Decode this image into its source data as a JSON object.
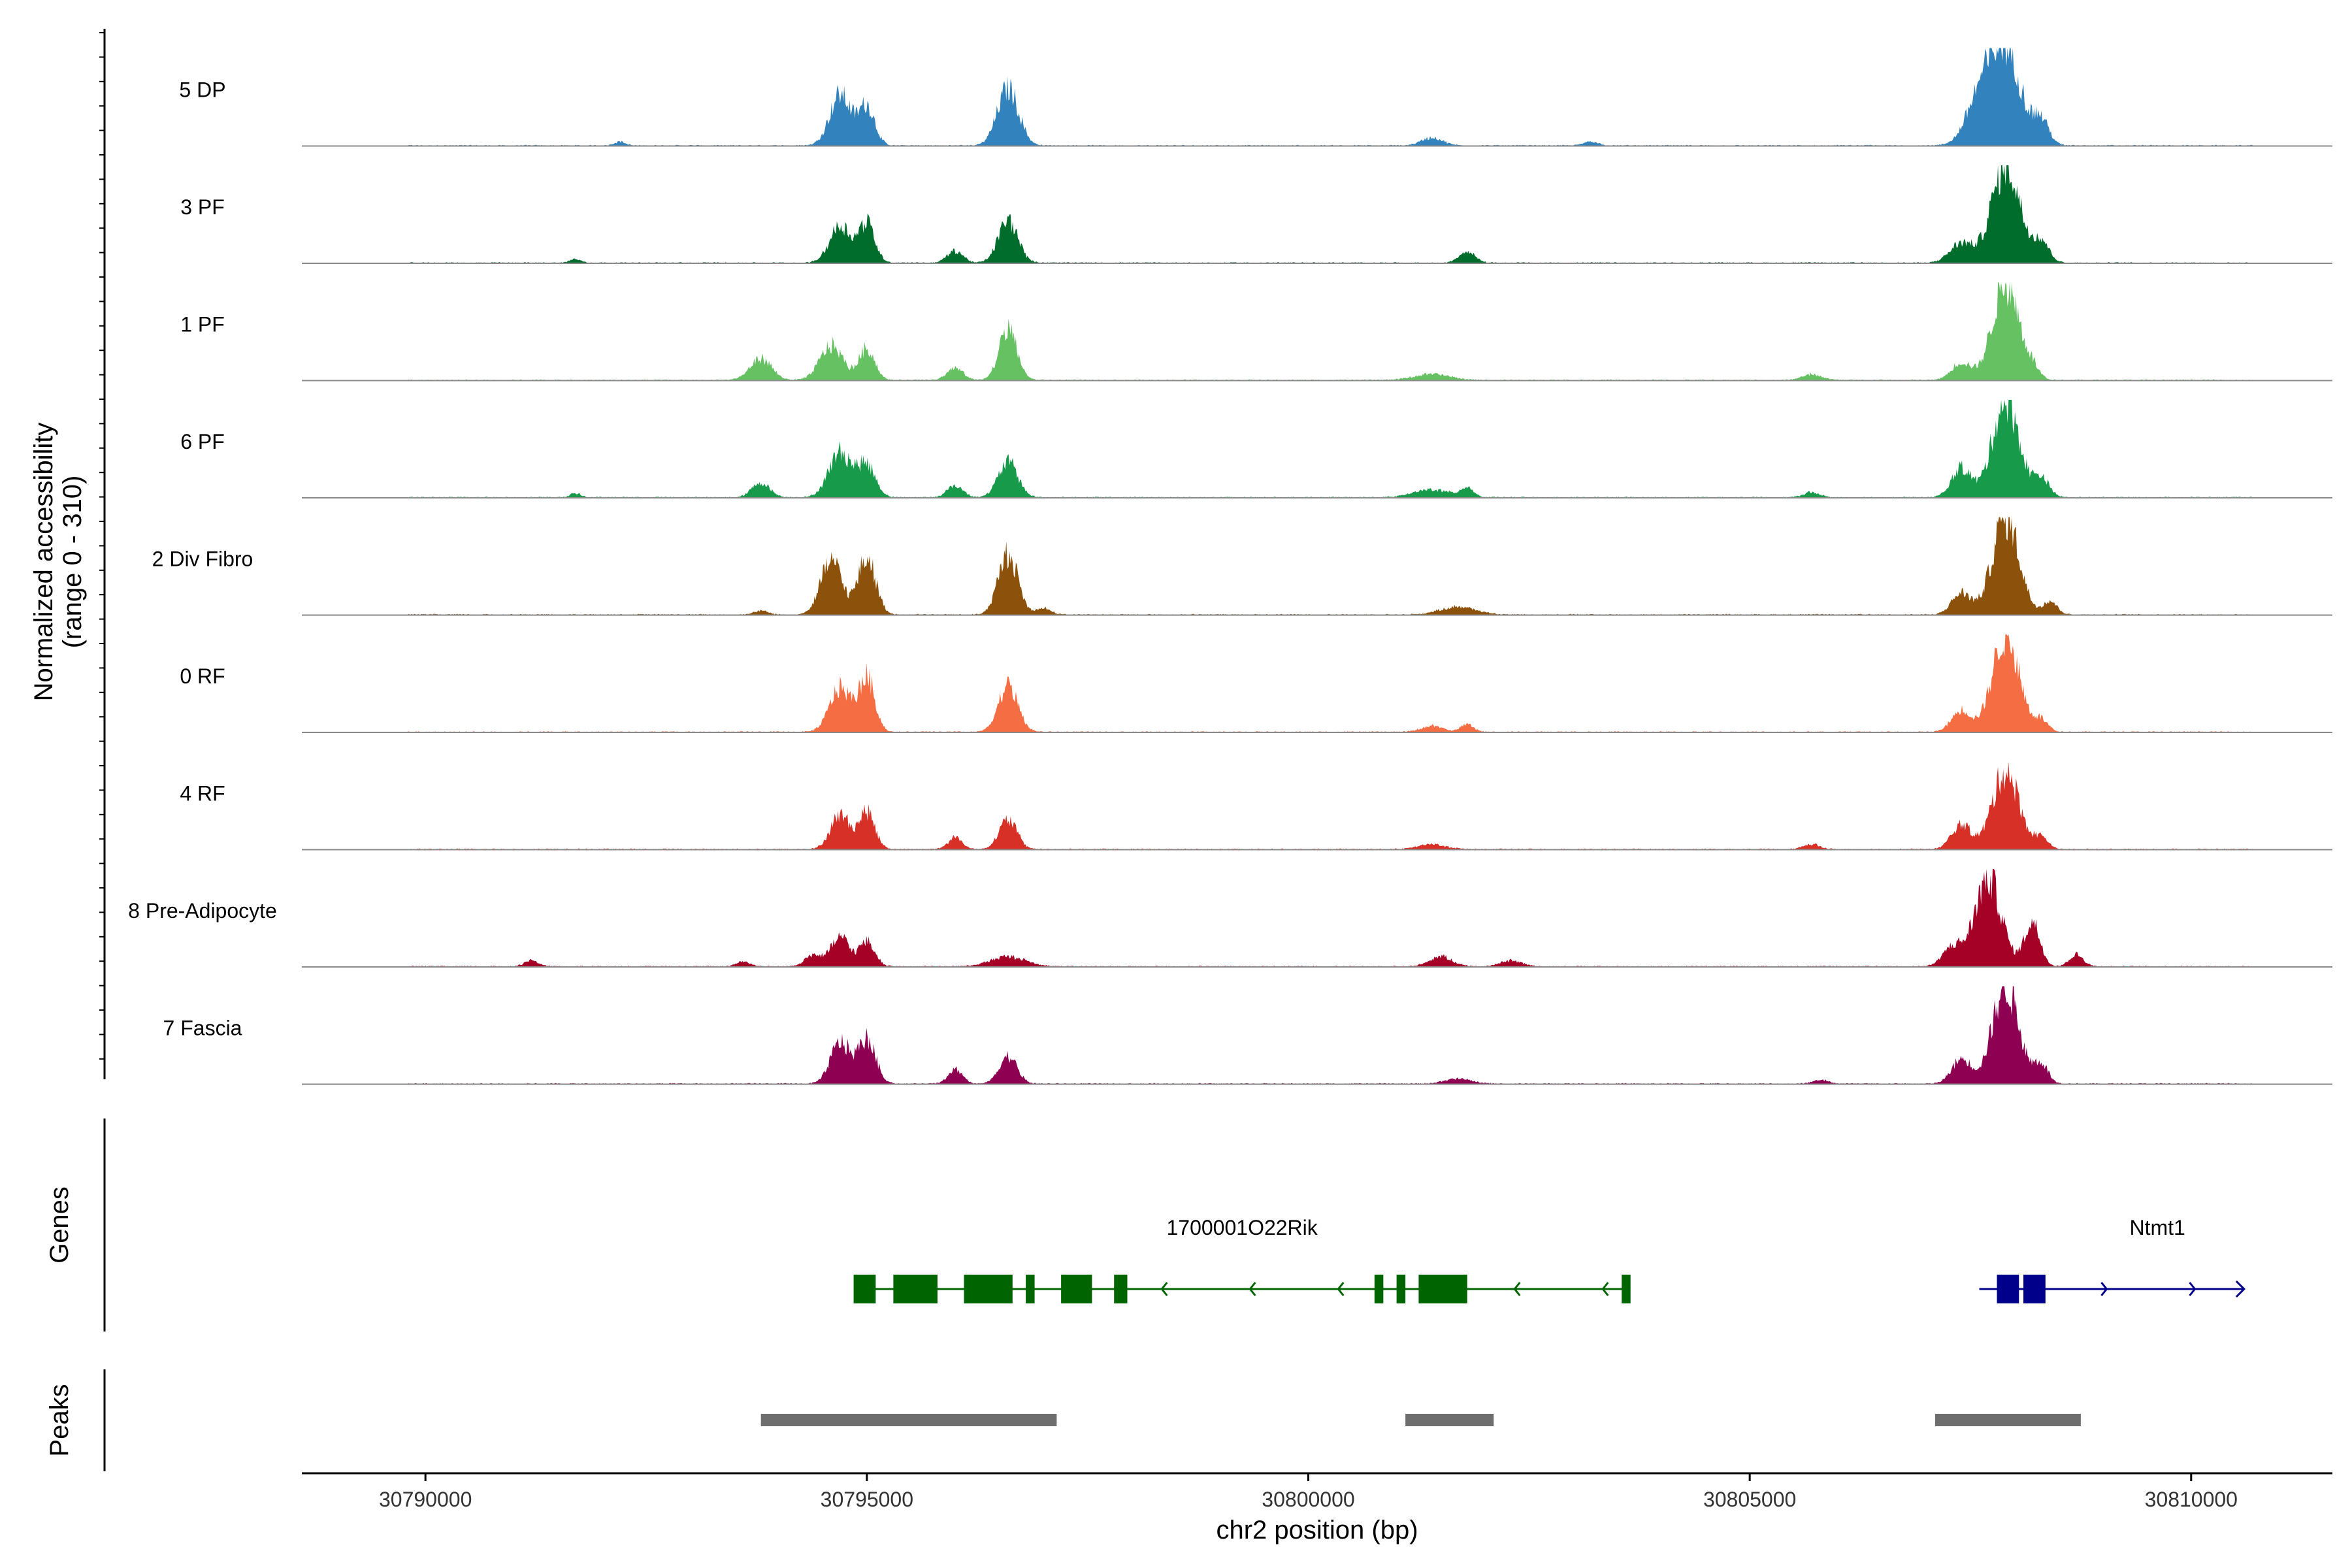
{
  "chart_data": {
    "type": "area",
    "ylabel_line1": "Normalized accessibility",
    "ylabel_line2": "(range 0 - 310)",
    "y_range": [
      0,
      310
    ],
    "xlabel": "chr2 position (bp)",
    "xlim": [
      30788600,
      30811600
    ],
    "x_ticks": [
      30790000,
      30795000,
      30800000,
      30805000,
      30810000
    ],
    "x_tick_labels": [
      "30790000",
      "30795000",
      "30800000",
      "30805000",
      "30810000"
    ],
    "genes_label": "Genes",
    "peaks_label": "Peaks",
    "tracks": [
      {
        "name": "5 DP",
        "color": "#3182bd",
        "profile": "dp"
      },
      {
        "name": "3 PF",
        "color": "#006d2c",
        "profile": "pf3"
      },
      {
        "name": "1 PF",
        "color": "#66c163",
        "profile": "pf1"
      },
      {
        "name": "6 PF",
        "color": "#179b4a",
        "profile": "pf6"
      },
      {
        "name": "2 Div Fibro",
        "color": "#8c510a",
        "profile": "div"
      },
      {
        "name": "0 RF",
        "color": "#f46d43",
        "profile": "rf0"
      },
      {
        "name": "4 RF",
        "color": "#d73027",
        "profile": "rf4"
      },
      {
        "name": "8 Pre-Adipocyte",
        "color": "#a50026",
        "profile": "pre"
      },
      {
        "name": "7 Fascia",
        "color": "#8e0152",
        "profile": "fas"
      }
    ],
    "signal_peaks": {
      "dp": [
        [
          30794700,
          120,
          52
        ],
        [
          30795000,
          90,
          40
        ],
        [
          30796600,
          120,
          58
        ],
        [
          30807600,
          150,
          45
        ],
        [
          30807900,
          170,
          100
        ],
        [
          30808300,
          90,
          25
        ],
        [
          30792200,
          60,
          4
        ],
        [
          30801400,
          120,
          8
        ],
        [
          30803200,
          80,
          4
        ]
      ],
      "pf3": [
        [
          30794700,
          120,
          38
        ],
        [
          30795000,
          90,
          40
        ],
        [
          30796000,
          90,
          12
        ],
        [
          30796600,
          110,
          43
        ],
        [
          30807400,
          130,
          20
        ],
        [
          30807900,
          160,
          100
        ],
        [
          30808300,
          90,
          22
        ],
        [
          30801800,
          90,
          12
        ],
        [
          30791700,
          60,
          4
        ]
      ],
      "pf1": [
        [
          30793800,
          120,
          22
        ],
        [
          30794600,
          130,
          35
        ],
        [
          30795000,
          90,
          32
        ],
        [
          30796000,
          90,
          12
        ],
        [
          30796600,
          100,
          52
        ],
        [
          30807400,
          110,
          18
        ],
        [
          30807900,
          150,
          100
        ],
        [
          30808200,
          80,
          10
        ],
        [
          30801400,
          200,
          6
        ],
        [
          30805700,
          110,
          6
        ]
      ],
      "pf6": [
        [
          30793800,
          100,
          15
        ],
        [
          30794700,
          130,
          46
        ],
        [
          30795000,
          100,
          32
        ],
        [
          30796000,
          90,
          12
        ],
        [
          30796600,
          110,
          36
        ],
        [
          30807400,
          110,
          30
        ],
        [
          30807900,
          150,
          100
        ],
        [
          30808300,
          90,
          20
        ],
        [
          30801400,
          200,
          8
        ],
        [
          30801800,
          70,
          10
        ],
        [
          30791700,
          60,
          4
        ],
        [
          30805700,
          90,
          5
        ]
      ],
      "div": [
        [
          30794600,
          120,
          55
        ],
        [
          30795000,
          100,
          58
        ],
        [
          30796600,
          110,
          62
        ],
        [
          30807400,
          110,
          22
        ],
        [
          30807900,
          150,
          100
        ],
        [
          30808400,
          80,
          14
        ],
        [
          30801700,
          200,
          8
        ],
        [
          30797000,
          80,
          7
        ],
        [
          30793800,
          80,
          4
        ]
      ],
      "rf0": [
        [
          30794700,
          120,
          45
        ],
        [
          30795000,
          90,
          55
        ],
        [
          30796600,
          110,
          47
        ],
        [
          30807400,
          110,
          22
        ],
        [
          30807900,
          150,
          100
        ],
        [
          30808300,
          80,
          12
        ],
        [
          30801400,
          120,
          6
        ],
        [
          30801800,
          70,
          8
        ]
      ],
      "rf4": [
        [
          30794700,
          110,
          35
        ],
        [
          30795000,
          90,
          38
        ],
        [
          30796000,
          80,
          12
        ],
        [
          30796600,
          100,
          30
        ],
        [
          30807400,
          110,
          25
        ],
        [
          30807900,
          150,
          80
        ],
        [
          30808300,
          80,
          12
        ],
        [
          30801400,
          150,
          5
        ],
        [
          30805700,
          90,
          5
        ]
      ],
      "pre": [
        [
          30794400,
          100,
          12
        ],
        [
          30794700,
          100,
          30
        ],
        [
          30795000,
          90,
          25
        ],
        [
          30796600,
          200,
          10
        ],
        [
          30807300,
          110,
          20
        ],
        [
          30807700,
          150,
          90
        ],
        [
          30808200,
          90,
          45
        ],
        [
          30808700,
          80,
          12
        ],
        [
          30801500,
          130,
          10
        ],
        [
          30802300,
          120,
          6
        ],
        [
          30791200,
          80,
          6
        ],
        [
          30793600,
          80,
          5
        ]
      ],
      "fas": [
        [
          30794700,
          110,
          42
        ],
        [
          30795000,
          100,
          45
        ],
        [
          30796000,
          80,
          15
        ],
        [
          30796600,
          100,
          28
        ],
        [
          30807400,
          110,
          25
        ],
        [
          30807900,
          150,
          100
        ],
        [
          30808300,
          80,
          20
        ],
        [
          30801700,
          150,
          5
        ],
        [
          30805800,
          90,
          4
        ]
      ]
    },
    "genes": [
      {
        "name": "1700001O22Rik",
        "strand": "-",
        "color": "#006400",
        "start": 30794900,
        "end": 30803600,
        "exons": [
          [
            30794850,
            30795100
          ],
          [
            30795300,
            30795800
          ],
          [
            30796100,
            30796650
          ],
          [
            30796800,
            30796900
          ],
          [
            30797200,
            30797550
          ],
          [
            30797800,
            30797950
          ],
          [
            30800750,
            30800850
          ],
          [
            30801000,
            30801100
          ],
          [
            30801250,
            30801800
          ],
          [
            30803550,
            30803650
          ]
        ]
      },
      {
        "name": "Ntmt1",
        "strand": "+",
        "color": "#00008b",
        "start": 30807600,
        "end": 30810600,
        "exons": [
          [
            30807800,
            30808050
          ],
          [
            30808100,
            30808350
          ]
        ]
      }
    ],
    "peak_regions": [
      [
        30793800,
        30797150
      ],
      [
        30801100,
        30802100
      ],
      [
        30807100,
        30808750
      ]
    ]
  }
}
